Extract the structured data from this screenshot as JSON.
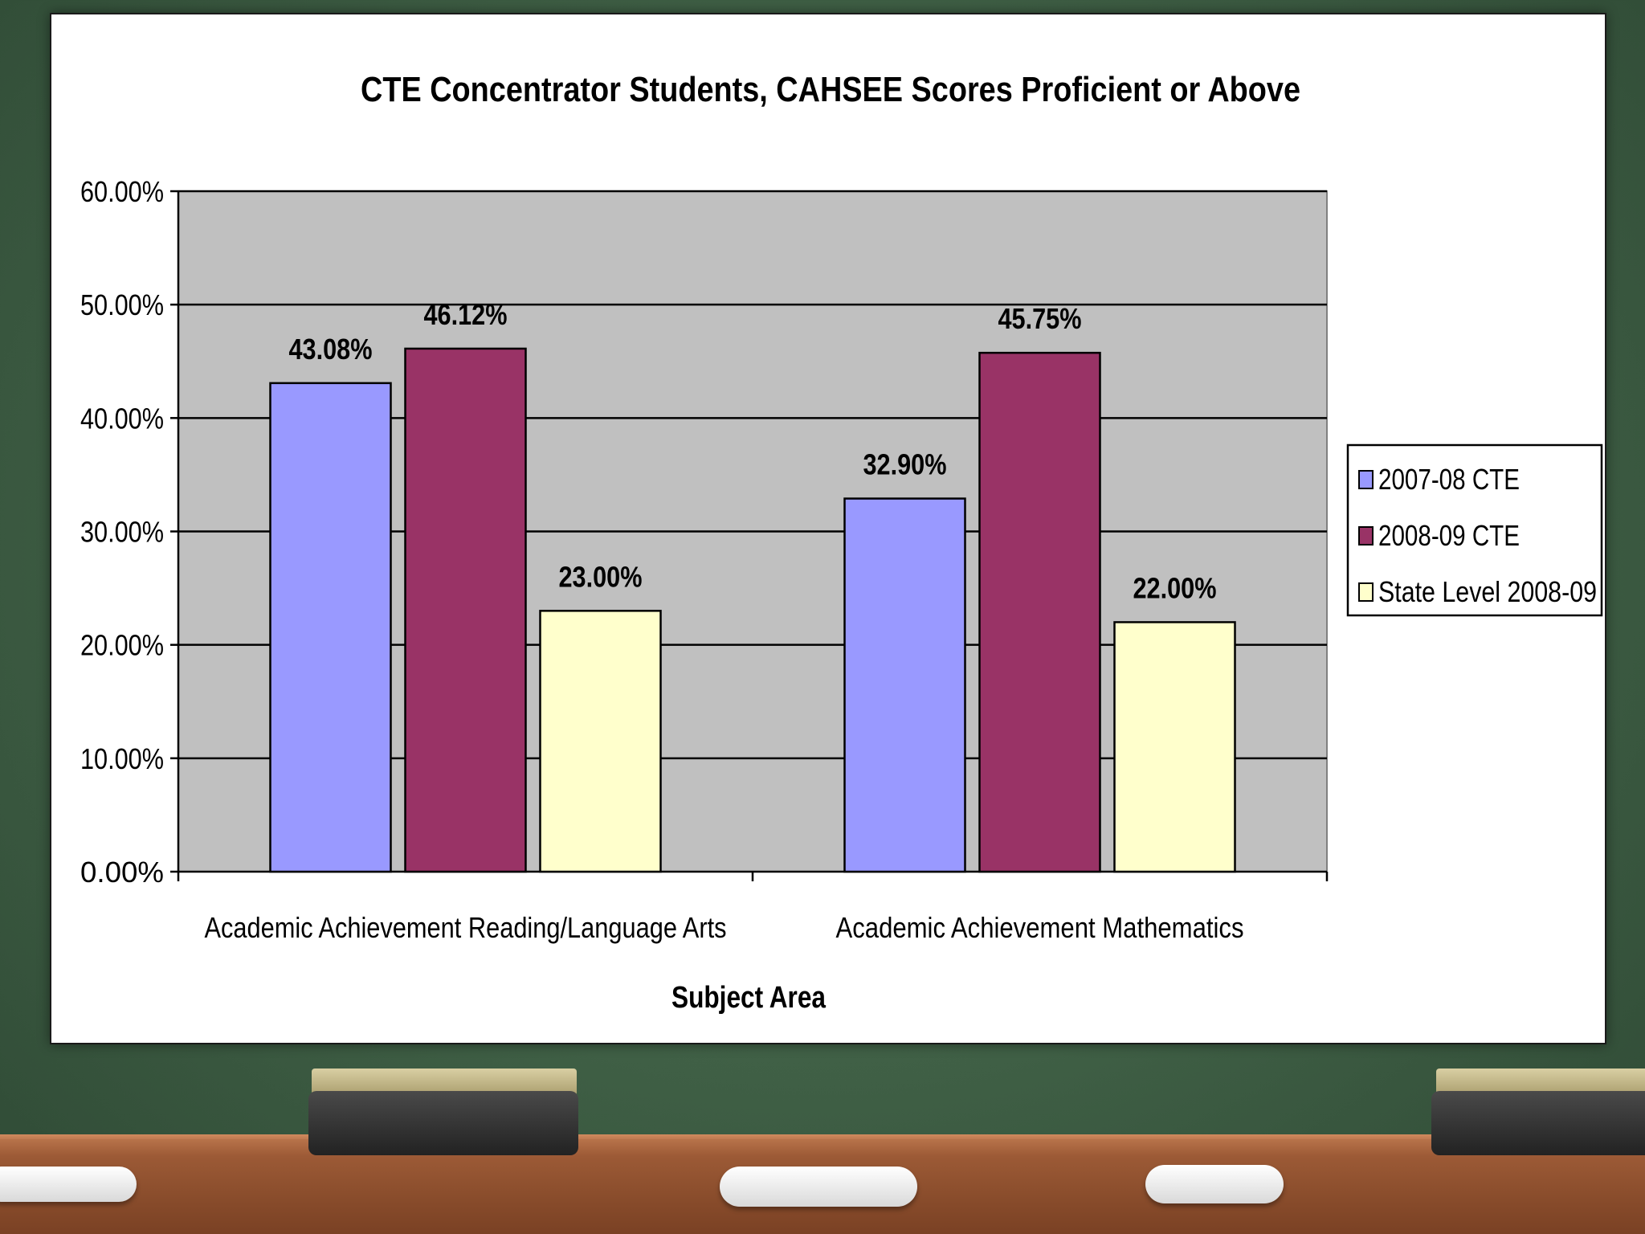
{
  "chart_data": {
    "type": "bar",
    "title": "CTE Concentrator Students, CAHSEE Scores Proficient or Above",
    "xlabel": "Subject Area",
    "ylabel": "",
    "ylim": [
      0,
      60
    ],
    "y_ticks": [
      "0.00%",
      "10.00%",
      "20.00%",
      "30.00%",
      "40.00%",
      "50.00%",
      "60.00%"
    ],
    "categories": [
      "Academic Achievement Reading/Language Arts",
      "Academic Achievement Mathematics"
    ],
    "series": [
      {
        "name": "2007-08 CTE",
        "values": [
          43.08,
          32.9
        ],
        "labels": [
          "43.08%",
          "32.90%"
        ],
        "color": "#9999ff"
      },
      {
        "name": "2008-09 CTE",
        "values": [
          46.12,
          45.75
        ],
        "labels": [
          "46.12%",
          "45.75%"
        ],
        "color": "#993366"
      },
      {
        "name": "State Level 2008-09",
        "values": [
          23.0,
          22.0
        ],
        "labels": [
          "23.00%",
          "22.00%"
        ],
        "color": "#ffffcc"
      }
    ],
    "grid": true,
    "plot_background": "#c0c0c0",
    "legend_position": "right"
  }
}
